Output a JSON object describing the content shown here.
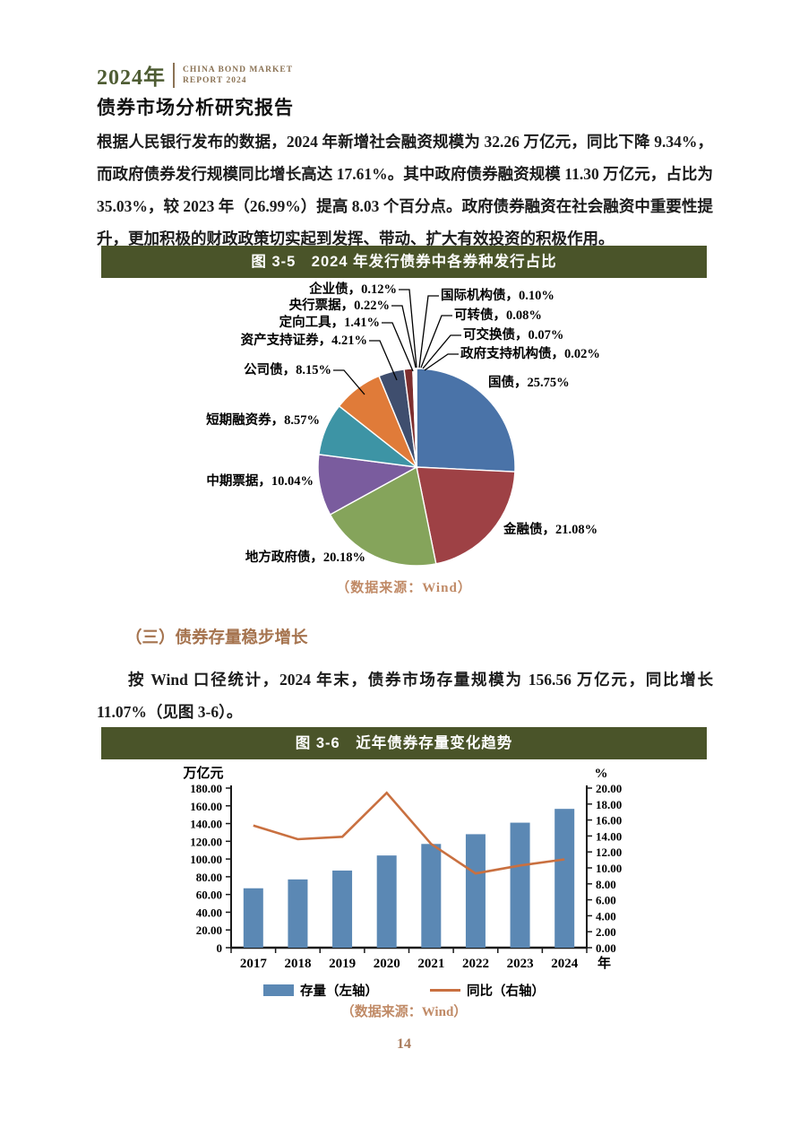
{
  "header": {
    "year": "2024年",
    "subtitle_line1": "CHINA BOND MARKET",
    "subtitle_line2": "REPORT 2024",
    "title": "债券市场分析研究报告"
  },
  "body": {
    "paragraph1": "根据人民银行发布的数据，2024 年新增社会融资规模为 32.26 万亿元，同比下降 9.34%，而政府债券发行规模同比增长高达 17.61%。其中政府债券融资规模 11.30 万亿元，占比为 35.03%，较 2023 年（26.99%）提高 8.03 个百分点。政府债券融资在社会融资中重要性提升，更加积极的财政政策切实起到发挥、带动、扩大有效投资的积极作用。",
    "section_heading": "（三）债券存量稳步增长",
    "paragraph2": "按 Wind 口径统计，2024 年末，债券市场存量规模为 156.56 万亿元，同比增长 11.07%（见图 3-6）。"
  },
  "figure1": {
    "title": "图 3-5　2024 年发行债券中各券种发行占比",
    "source": "（数据来源：Wind）"
  },
  "figure2": {
    "title": "图 3-6　近年债券存量变化趋势",
    "source": "（数据来源：Wind）"
  },
  "page_number": "14",
  "colors": {
    "title_bar_bg": "#4A5429",
    "header_year": "#4E5C33",
    "header_subtitle": "#8B7355",
    "section_heading": "#A5734E",
    "source_text": "#C08A66",
    "bar_series": "#5B88B4",
    "line_series": "#C97040"
  },
  "chart_data": [
    {
      "type": "pie",
      "title": "图 3-5 2024 年发行债券中各券种发行占比",
      "source": "（数据来源：Wind）",
      "start_angle_deg": -90,
      "direction": "clockwise",
      "slices": [
        {
          "name": "国债",
          "value": 25.75,
          "label": "国债，25.75%",
          "color": "#4A73A8"
        },
        {
          "name": "金融债",
          "value": 21.08,
          "label": "金融债，21.08%",
          "color": "#9E4145"
        },
        {
          "name": "地方政府债",
          "value": 20.18,
          "label": "地方政府债，20.18%",
          "color": "#85A45B"
        },
        {
          "name": "中期票据",
          "value": 10.04,
          "label": "中期票据，10.04%",
          "color": "#7A5C9E"
        },
        {
          "name": "短期融资券",
          "value": 8.57,
          "label": "短期融资券，8.57%",
          "color": "#3D94A5"
        },
        {
          "name": "公司债",
          "value": 8.15,
          "label": "公司债，8.15%",
          "color": "#E07B39"
        },
        {
          "name": "资产支持证券",
          "value": 4.21,
          "label": "资产支持证券，4.21%",
          "color": "#3F4E6E"
        },
        {
          "name": "定向工具",
          "value": 1.41,
          "label": "定向工具，1.41%",
          "color": "#7E2F2F"
        },
        {
          "name": "央行票据",
          "value": 0.22,
          "label": "央行票据，0.22%",
          "color": "#943634"
        },
        {
          "name": "企业债",
          "value": 0.12,
          "label": "企业债，0.12%",
          "color": "#D99694"
        },
        {
          "name": "国际机构债",
          "value": 0.1,
          "label": "国际机构债，0.10%",
          "color": "#77933C"
        },
        {
          "name": "可转债",
          "value": 0.08,
          "label": "可转债，0.08%",
          "color": "#4BACC6"
        },
        {
          "name": "可交换债",
          "value": 0.07,
          "label": "可交换债，0.07%",
          "color": "#F79646"
        },
        {
          "name": "政府支持机构债",
          "value": 0.02,
          "label": "政府支持机构债，0.02%",
          "color": "#604A7B"
        }
      ]
    },
    {
      "type": "bar",
      "title": "图 3-6 近年债券存量变化趋势",
      "source": "（数据来源：Wind）",
      "categories": [
        "2017",
        "2018",
        "2019",
        "2020",
        "2021",
        "2022",
        "2023",
        "2024"
      ],
      "x_axis_suffix": "年",
      "series": [
        {
          "name": "存量（左轴）",
          "kind": "bar",
          "axis": "left",
          "values": [
            67,
            77,
            87,
            104,
            117,
            128,
            141,
            156.56
          ],
          "color": "#5B88B4"
        },
        {
          "name": "同比（右轴）",
          "kind": "line",
          "axis": "right",
          "values": [
            15.3,
            13.6,
            13.9,
            19.4,
            13.0,
            9.3,
            10.3,
            11.07
          ],
          "color": "#C97040"
        }
      ],
      "left_axis": {
        "label": "万亿元",
        "min": 0,
        "max": 180,
        "ticks": [
          "0",
          "20.00",
          "40.00",
          "60.00",
          "80.00",
          "100.00",
          "120.00",
          "140.00",
          "160.00",
          "180.00"
        ]
      },
      "right_axis": {
        "label": "%",
        "min": 0,
        "max": 20,
        "ticks": [
          "0.00",
          "2.00",
          "4.00",
          "6.00",
          "8.00",
          "10.00",
          "12.00",
          "14.00",
          "16.00",
          "18.00",
          "20.00"
        ]
      },
      "legend_position": "bottom",
      "grid": false
    }
  ]
}
